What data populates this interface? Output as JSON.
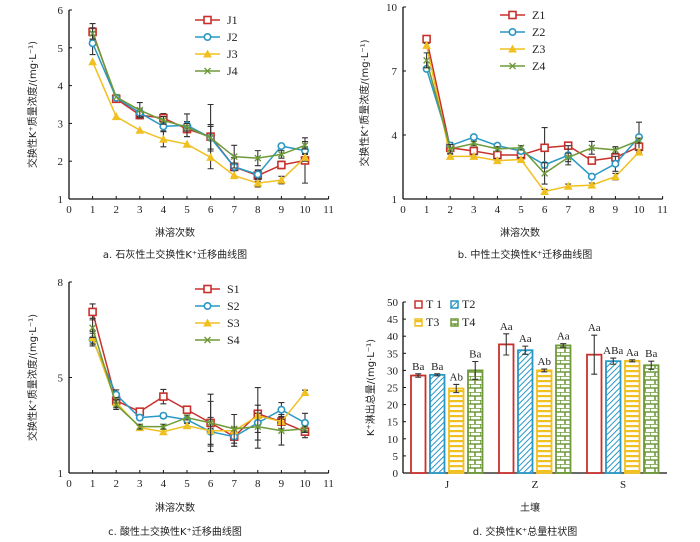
{
  "chart_data": [
    {
      "id": "a",
      "type": "line",
      "title": "a. 石灰性土交换性K⁺迁移曲线图",
      "xlabel": "淋溶次数",
      "ylabel": "交换性K⁺质量浓度/(mg·L⁻¹)",
      "xlim": [
        0,
        11
      ],
      "ylim": [
        1,
        6
      ],
      "xticks": [
        "0",
        "1",
        "2",
        "3",
        "4",
        "5",
        "6",
        "7",
        "8",
        "9",
        "10",
        "11"
      ],
      "yticks": [
        {
          "v": 1,
          "label": "1"
        },
        {
          "v": 2,
          "label": "2"
        },
        {
          "v": 3,
          "label": "3"
        },
        {
          "v": 4,
          "label": "4"
        },
        {
          "v": 5,
          "label": "5"
        },
        {
          "v": 6,
          "label": "6"
        }
      ],
      "legend_position": "top-right",
      "x": [
        1,
        2,
        3,
        4,
        5,
        6,
        7,
        8,
        9,
        10
      ],
      "series": [
        {
          "name": "J1",
          "color": "#c8302c",
          "marker": "square",
          "values": [
            5.42,
            3.65,
            3.22,
            3.14,
            2.85,
            2.65,
            1.85,
            1.62,
            1.9,
            2.02
          ],
          "err": [
            0.22,
            0.05,
            0.1,
            0.12,
            0.2,
            0.85,
            0.25,
            0.15,
            0.1,
            0.6
          ]
        },
        {
          "name": "J2",
          "color": "#2a97c4",
          "marker": "circle",
          "values": [
            5.12,
            3.68,
            3.28,
            2.92,
            2.95,
            2.62,
            1.85,
            1.65,
            2.4,
            2.28
          ],
          "err": [
            0.3,
            0.05,
            0.1,
            0.12,
            0.3,
            0.3,
            0.1,
            0.1,
            0.05,
            0.1
          ]
        },
        {
          "name": "J3",
          "color": "#f0c020",
          "marker": "triangle",
          "values": [
            4.63,
            3.18,
            2.82,
            2.58,
            2.45,
            2.1,
            1.62,
            1.42,
            1.5,
            2.1
          ],
          "err": [
            0.05,
            0.05,
            0.05,
            0.2,
            0.05,
            0.05,
            0.05,
            0.1,
            0.1,
            0.1
          ]
        },
        {
          "name": "J4",
          "color": "#6e9a3a",
          "marker": "x",
          "values": [
            5.38,
            3.7,
            3.35,
            3.08,
            2.9,
            2.62,
            2.12,
            2.08,
            2.18,
            2.42
          ],
          "err": [
            0.15,
            0.05,
            0.2,
            0.1,
            0.1,
            0.35,
            0.3,
            0.2,
            0.1,
            0.1
          ]
        }
      ]
    },
    {
      "id": "b",
      "type": "line",
      "title": "b. 中性土交换性K⁺迁移曲线图",
      "xlabel": "淋溶次数",
      "ylabel": "交换性K⁺质量浓度/(mg·L⁻¹)",
      "xlim": [
        0,
        11
      ],
      "ylim": [
        1,
        10
      ],
      "xticks": [
        "0",
        "1",
        "2",
        "3",
        "4",
        "5",
        "6",
        "7",
        "8",
        "9",
        "10",
        "11"
      ],
      "yticks": [
        {
          "v": 1,
          "label": "1"
        },
        {
          "v": 4,
          "label": "4"
        },
        {
          "v": 7,
          "label": "7"
        },
        {
          "v": 10,
          "label": "10"
        }
      ],
      "legend_position": "top-center",
      "x": [
        1,
        2,
        3,
        4,
        5,
        6,
        7,
        8,
        9,
        10
      ],
      "series": [
        {
          "name": "Z1",
          "color": "#c8302c",
          "marker": "square",
          "values": [
            8.5,
            3.4,
            3.25,
            3.06,
            3.06,
            3.4,
            3.5,
            2.8,
            2.95,
            3.45
          ],
          "err": [
            0.1,
            0.1,
            0.1,
            0.1,
            0.1,
            0.95,
            0.15,
            0.1,
            0.1,
            0.1
          ]
        },
        {
          "name": "Z2",
          "color": "#2a97c4",
          "marker": "circle",
          "values": [
            7.1,
            3.5,
            3.9,
            3.5,
            3.25,
            2.6,
            3.05,
            2.05,
            2.65,
            3.9
          ],
          "err": [
            0.1,
            0.15,
            0.1,
            0.1,
            0.1,
            0.1,
            0.45,
            0.1,
            0.35,
            0.7
          ]
        },
        {
          "name": "Z3",
          "color": "#f0c020",
          "marker": "triangle",
          "values": [
            8.2,
            3.0,
            3.0,
            2.8,
            2.85,
            1.35,
            1.6,
            1.65,
            2.05,
            3.2
          ],
          "err": [
            0.1,
            0.1,
            0.1,
            0.1,
            0.1,
            0.1,
            0.1,
            0.1,
            0.15,
            0.1
          ]
        },
        {
          "name": "Z4",
          "color": "#6e9a3a",
          "marker": "x",
          "values": [
            7.5,
            3.35,
            3.6,
            3.35,
            3.4,
            2.2,
            2.95,
            3.4,
            3.3,
            3.75
          ],
          "err": [
            0.35,
            0.2,
            0.1,
            0.1,
            0.1,
            0.5,
            0.2,
            0.3,
            0.15,
            0.1
          ]
        }
      ]
    },
    {
      "id": "c",
      "type": "line",
      "title": "c. 酸性土交换性K⁺迁移曲线图",
      "xlabel": "淋溶次数",
      "ylabel": "交换性K⁺质量浓度/(mg·L⁻¹)",
      "xlim": [
        0,
        11
      ],
      "ylim": [
        1,
        8
      ],
      "xticks": [
        "0",
        "1",
        "2",
        "3",
        "4",
        "5",
        "6",
        "7",
        "8",
        "9",
        "10",
        "11"
      ],
      "yticks": [
        {
          "v": 1,
          "label": "1"
        },
        {
          "v": 5,
          "label": "5"
        },
        {
          "v": 8,
          "label": "8"
        }
      ],
      "y_scale_note": "tick labels 1, 5, 8 are equally spaced; values interpolated piecewise between labeled ticks",
      "legend_position": "top-right",
      "x": [
        1,
        2,
        3,
        4,
        5,
        6,
        7,
        8,
        9,
        10
      ],
      "series": [
        {
          "name": "S1",
          "color": "#c8302c",
          "marker": "square",
          "values": [
            7.06,
            4.03,
            3.57,
            4.2,
            3.65,
            3.1,
            2.52,
            3.48,
            3.15,
            2.73
          ],
          "err": [
            0.25,
            0.3,
            0.1,
            0.3,
            0.1,
            1.2,
            0.4,
            1.1,
            0.3,
            0.25
          ]
        },
        {
          "name": "S2",
          "color": "#2a97c4",
          "marker": "circle",
          "values": [
            6.19,
            4.28,
            3.32,
            3.4,
            3.23,
            2.73,
            2.52,
            3.1,
            3.65,
            3.1
          ],
          "err": [
            0.2,
            0.2,
            0.1,
            0.1,
            0.1,
            0.6,
            0.4,
            0.4,
            0.3,
            0.4
          ]
        },
        {
          "name": "S3",
          "color": "#f0c020",
          "marker": "triangle",
          "values": [
            6.25,
            3.95,
            2.9,
            2.73,
            2.98,
            2.77,
            2.77,
            3.4,
            3.15,
            4.37
          ],
          "err": [
            0.2,
            0.2,
            0.1,
            0.1,
            0.1,
            0.1,
            0.1,
            0.1,
            0.1,
            0.1
          ]
        },
        {
          "name": "S4",
          "color": "#6e9a3a",
          "marker": "x",
          "values": [
            6.56,
            3.86,
            2.94,
            2.94,
            3.32,
            3.1,
            2.85,
            2.94,
            2.77,
            2.85
          ],
          "err": [
            0.3,
            0.2,
            0.1,
            0.1,
            0.1,
            0.9,
            0.6,
            0.9,
            0.6,
            0.1
          ]
        }
      ]
    },
    {
      "id": "d",
      "type": "bar",
      "title": "d. 交换性K⁺总量柱状图",
      "xlabel": "土壤",
      "ylabel": "K⁺淋出总量/(mg·L⁻¹)",
      "ylim": [
        0,
        50
      ],
      "yticks": [
        "0",
        "5",
        "10",
        "15",
        "20",
        "25",
        "30",
        "35",
        "40",
        "45",
        "50"
      ],
      "categories": [
        "J",
        "Z",
        "S"
      ],
      "legend_position": "top-left",
      "series": [
        {
          "name": "T 1",
          "color": "#c8302c",
          "pattern": "none",
          "values": [
            28.5,
            37.6,
            34.6
          ],
          "err": [
            0.5,
            3.1,
            5.7
          ],
          "letters": [
            "Ba",
            "Aa",
            "Aa"
          ]
        },
        {
          "name": "T2",
          "color": "#2a97c4",
          "pattern": "diagonal",
          "values": [
            28.7,
            35.9,
            32.7
          ],
          "err": [
            0.3,
            1.2,
            0.9
          ],
          "letters": [
            "Ba",
            "Aa",
            "ABa"
          ]
        },
        {
          "name": "T3",
          "color": "#f0c020",
          "pattern": "horizontal",
          "values": [
            24.7,
            30.0,
            32.8
          ],
          "err": [
            1.2,
            0.4,
            0.3
          ],
          "letters": [
            "Ab",
            "Ab",
            "Aa"
          ]
        },
        {
          "name": "T4",
          "color": "#6e9a3a",
          "pattern": "brick",
          "values": [
            30.0,
            37.3,
            31.5
          ],
          "err": [
            2.6,
            0.5,
            1.2
          ],
          "letters": [
            "Ba",
            "Aa",
            "Ba"
          ]
        }
      ]
    }
  ]
}
